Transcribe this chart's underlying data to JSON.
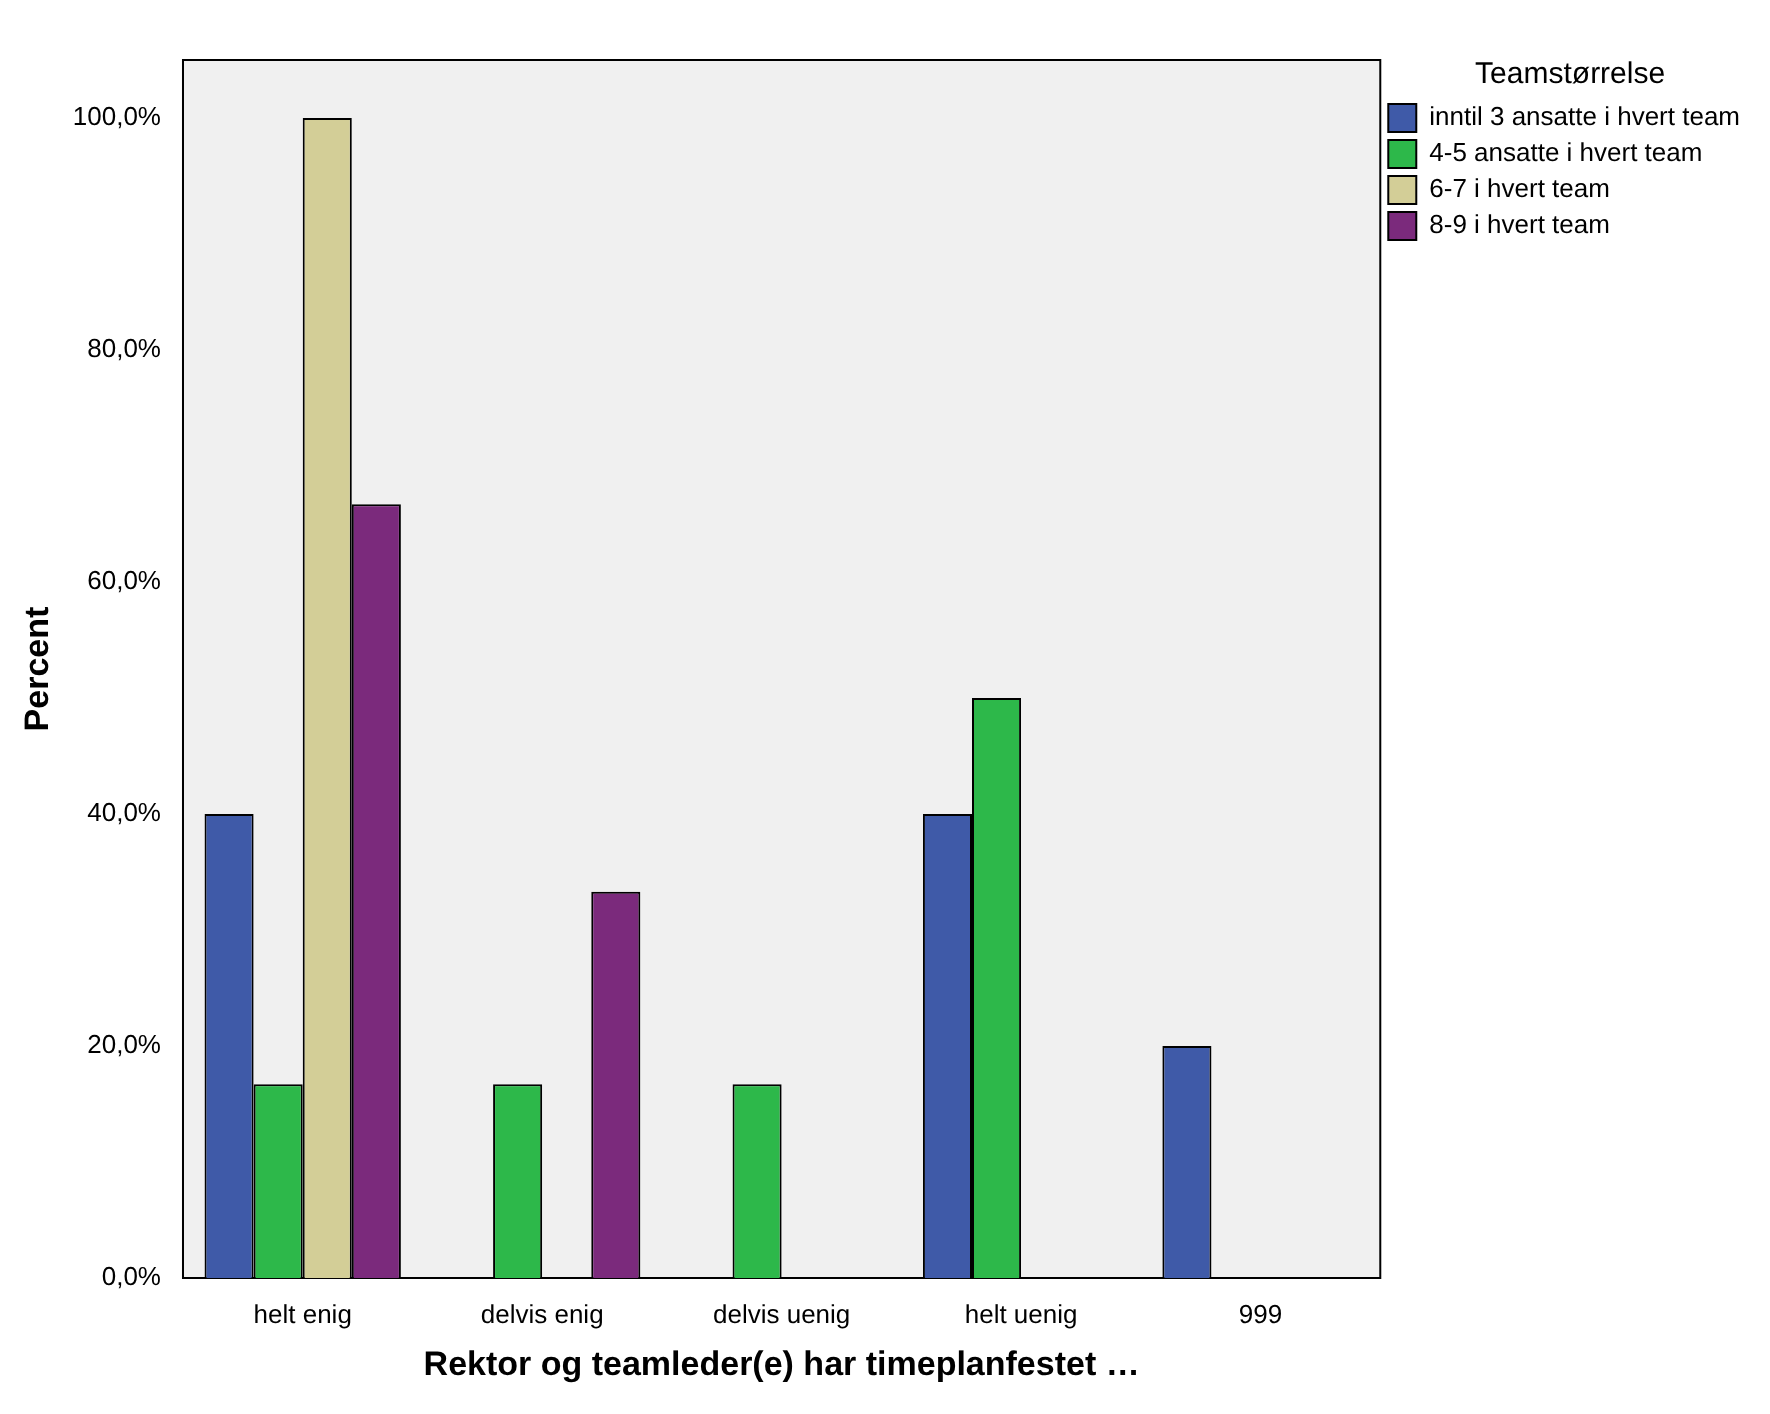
{
  "chart_data": {
    "type": "bar",
    "xlabel": "Rektor og teamleder(e) har timeplanfestet …",
    "ylabel": "Percent",
    "legend_title": "Teamstørrelse",
    "categories": [
      "helt enig",
      "delvis enig",
      "delvis uenig",
      "helt uenig",
      "999"
    ],
    "series": [
      {
        "name": "inntil 3 ansatte i hvert team",
        "color": "#3f5aa8",
        "values": [
          40,
          null,
          null,
          40,
          20
        ]
      },
      {
        "name": "4-5 ansatte i hvert team",
        "color": "#2db84a",
        "values": [
          16.7,
          16.7,
          16.7,
          50,
          null
        ]
      },
      {
        "name": "6-7 i hvert team",
        "color": "#d3ce97",
        "values": [
          100,
          null,
          null,
          null,
          null
        ]
      },
      {
        "name": "8-9 i hvert team",
        "color": "#7b2a7c",
        "values": [
          66.7,
          33.3,
          null,
          null,
          null
        ]
      }
    ],
    "ylim": [
      0,
      105
    ],
    "yticks": [
      {
        "value": 0,
        "label": "0,0%"
      },
      {
        "value": 20,
        "label": "20,0%"
      },
      {
        "value": 40,
        "label": "40,0%"
      },
      {
        "value": 60,
        "label": "60,0%"
      },
      {
        "value": 80,
        "label": "80,0%"
      },
      {
        "value": 100,
        "label": "100,0%"
      }
    ],
    "grid": false,
    "legend": "right"
  }
}
